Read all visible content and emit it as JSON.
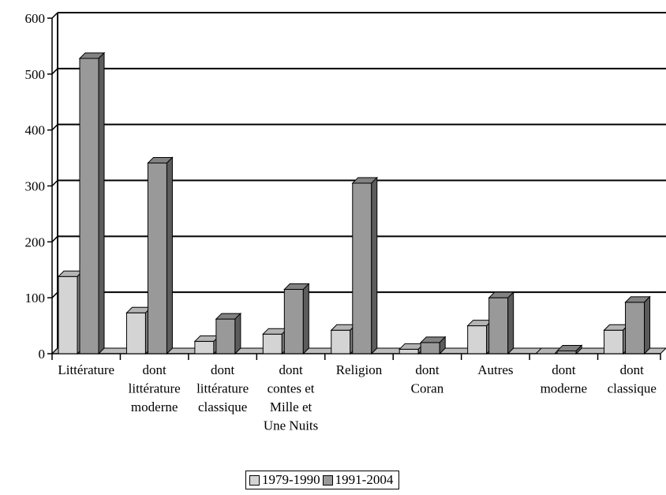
{
  "chart_data": {
    "type": "bar",
    "categories": [
      [
        "Littérature"
      ],
      [
        "dont",
        "littérature",
        "moderne"
      ],
      [
        "dont",
        "littérature",
        "classique"
      ],
      [
        "dont",
        "contes et",
        "Mille et",
        "Une Nuits"
      ],
      [
        "Religion"
      ],
      [
        "dont",
        "Coran"
      ],
      [
        "Autres"
      ],
      [
        "dont",
        "moderne"
      ],
      [
        "dont",
        "classique"
      ]
    ],
    "series": [
      {
        "name": "1979-1990",
        "values": [
          138,
          73,
          22,
          35,
          42,
          8,
          50,
          0,
          42
        ],
        "color": "#d4d4d4"
      },
      {
        "name": "1991-2004",
        "values": [
          528,
          341,
          62,
          115,
          305,
          20,
          100,
          5,
          92
        ],
        "color": "#999999"
      }
    ],
    "ylim": [
      0,
      600
    ],
    "yticks": [
      0,
      100,
      200,
      300,
      400,
      500,
      600
    ],
    "grid": true,
    "legend_position": "bottom",
    "style": "3d-clustered-bar"
  }
}
